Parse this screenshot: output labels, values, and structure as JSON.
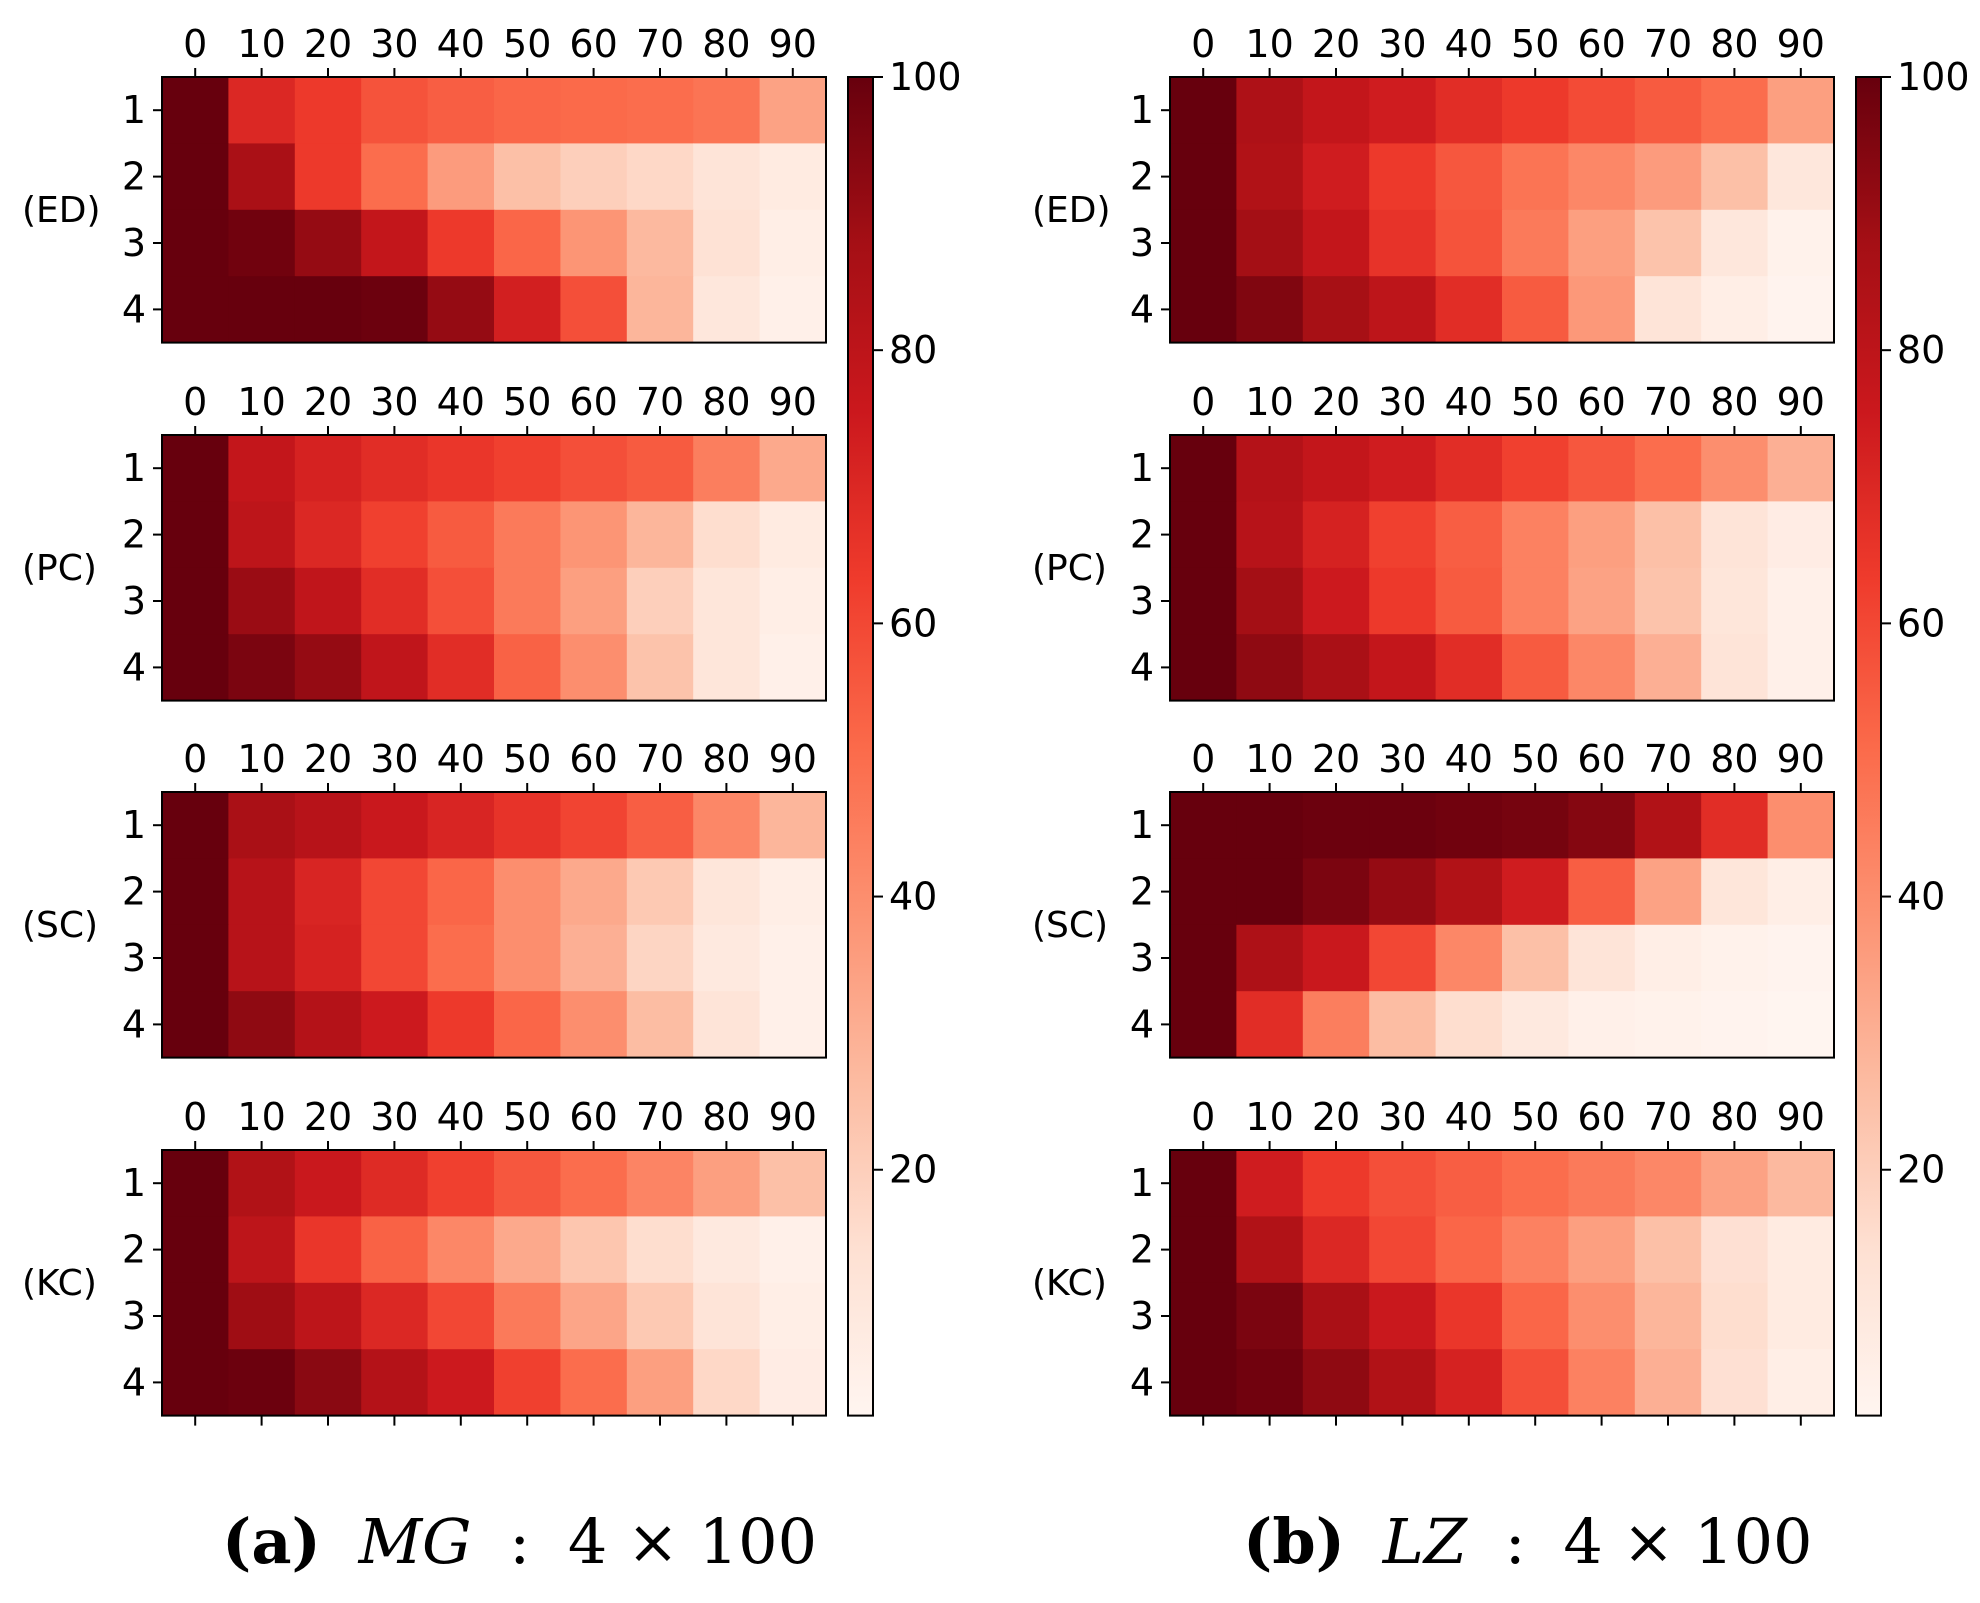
{
  "colorbar": {
    "colormap": "Reds",
    "vmin": 2,
    "vmax": 100,
    "ticks": [
      "20",
      "40",
      "60",
      "80",
      "100"
    ],
    "tick_values": [
      20,
      40,
      60,
      80,
      100
    ],
    "colors": [
      "#fff5f0",
      "#fee0d2",
      "#fcbba1",
      "#fc9272",
      "#fb6a4a",
      "#ef3b2c",
      "#cb181d",
      "#a50f15",
      "#67000d"
    ]
  },
  "chart_data": [
    {
      "type": "heatmap",
      "panel": "a",
      "caption": {
        "letter": "(a)",
        "name": "MG",
        "sep": ":",
        "size": "4 × 100"
      },
      "x_ticks": [
        "0",
        "10",
        "20",
        "30",
        "40",
        "50",
        "60",
        "70",
        "80",
        "90"
      ],
      "y_ticks": [
        "1",
        "2",
        "3",
        "4"
      ],
      "subplots": [
        {
          "label": "(ED)",
          "values": [
            [
              100,
              70,
              64,
              57,
              54,
              52,
              51,
              50,
              48,
              34
            ],
            [
              100,
              86,
              64,
              50,
              36,
              25,
              20,
              17,
              12,
              8
            ],
            [
              100,
              98,
              91,
              78,
              64,
              52,
              38,
              27,
              13,
              6
            ],
            [
              100,
              100,
              100,
              99,
              91,
              73,
              58,
              28,
              10,
              5
            ]
          ]
        },
        {
          "label": "(PC)",
          "values": [
            [
              100,
              78,
              72,
              68,
              65,
              62,
              58,
              55,
              45,
              32
            ],
            [
              100,
              80,
              70,
              62,
              55,
              46,
              38,
              28,
              15,
              8
            ],
            [
              100,
              90,
              79,
              68,
              58,
              46,
              35,
              20,
              11,
              6
            ],
            [
              100,
              96,
              91,
              79,
              68,
              53,
              40,
              24,
              11,
              5
            ]
          ]
        },
        {
          "label": "(SC)",
          "values": [
            [
              100,
              86,
              82,
              76,
              71,
              66,
              61,
              54,
              42,
              28
            ],
            [
              100,
              82,
              71,
              60,
              52,
              40,
              32,
              22,
              11,
              6
            ],
            [
              100,
              82,
              72,
              60,
              50,
              40,
              30,
              18,
              9,
              5
            ],
            [
              100,
              92,
              83,
              75,
              64,
              52,
              40,
              26,
              12,
              5
            ]
          ]
        },
        {
          "label": "(KC)",
          "values": [
            [
              100,
              84,
              76,
              69,
              62,
              56,
              50,
              43,
              35,
              25
            ],
            [
              100,
              80,
              65,
              53,
              42,
              32,
              23,
              15,
              9,
              5
            ],
            [
              100,
              89,
              80,
              70,
              60,
              46,
              33,
              22,
              12,
              6
            ],
            [
              100,
              99,
              93,
              83,
              75,
              62,
              50,
              35,
              17,
              7
            ]
          ]
        }
      ]
    },
    {
      "type": "heatmap",
      "panel": "b",
      "caption": {
        "letter": "(b)",
        "name": "LZ",
        "sep": ":",
        "size": "4 × 100"
      },
      "x_ticks": [
        "0",
        "10",
        "20",
        "30",
        "40",
        "50",
        "60",
        "70",
        "80",
        "90"
      ],
      "y_ticks": [
        "1",
        "2",
        "3",
        "4"
      ],
      "subplots": [
        {
          "label": "(ED)",
          "values": [
            [
              100,
              85,
              78,
              74,
              68,
              64,
              59,
              55,
              50,
              35
            ],
            [
              100,
              84,
              74,
              64,
              56,
              48,
              42,
              36,
              25,
              10
            ],
            [
              100,
              88,
              78,
              66,
              57,
              46,
              35,
              24,
              10,
              4
            ],
            [
              100,
              95,
              87,
              80,
              68,
              55,
              37,
              12,
              6,
              3
            ]
          ]
        },
        {
          "label": "(PC)",
          "values": [
            [
              100,
              83,
              78,
              74,
              68,
              62,
              56,
              50,
              40,
              30
            ],
            [
              100,
              82,
              72,
              62,
              54,
              44,
              35,
              25,
              12,
              7
            ],
            [
              100,
              88,
              75,
              64,
              55,
              44,
              34,
              24,
              11,
              5
            ],
            [
              100,
              92,
              86,
              78,
              68,
              55,
              42,
              30,
              12,
              5
            ]
          ]
        },
        {
          "label": "(SC)",
          "values": [
            [
              100,
              100,
              99,
              99,
              98,
              97,
              94,
              84,
              68,
              40
            ],
            [
              100,
              100,
              96,
              91,
              84,
              74,
              54,
              34,
              11,
              6
            ],
            [
              100,
              85,
              76,
              60,
              42,
              25,
              12,
              6,
              4,
              3
            ],
            [
              100,
              68,
              45,
              26,
              15,
              9,
              5,
              4,
              3,
              2
            ]
          ]
        },
        {
          "label": "(KC)",
          "values": [
            [
              100,
              74,
              64,
              58,
              54,
              50,
              46,
              42,
              34,
              27
            ],
            [
              100,
              84,
              70,
              60,
              52,
              44,
              35,
              25,
              14,
              8
            ],
            [
              100,
              96,
              86,
              76,
              65,
              52,
              40,
              28,
              15,
              8
            ],
            [
              100,
              98,
              92,
              84,
              72,
              58,
              44,
              30,
              14,
              6
            ]
          ]
        }
      ]
    }
  ]
}
